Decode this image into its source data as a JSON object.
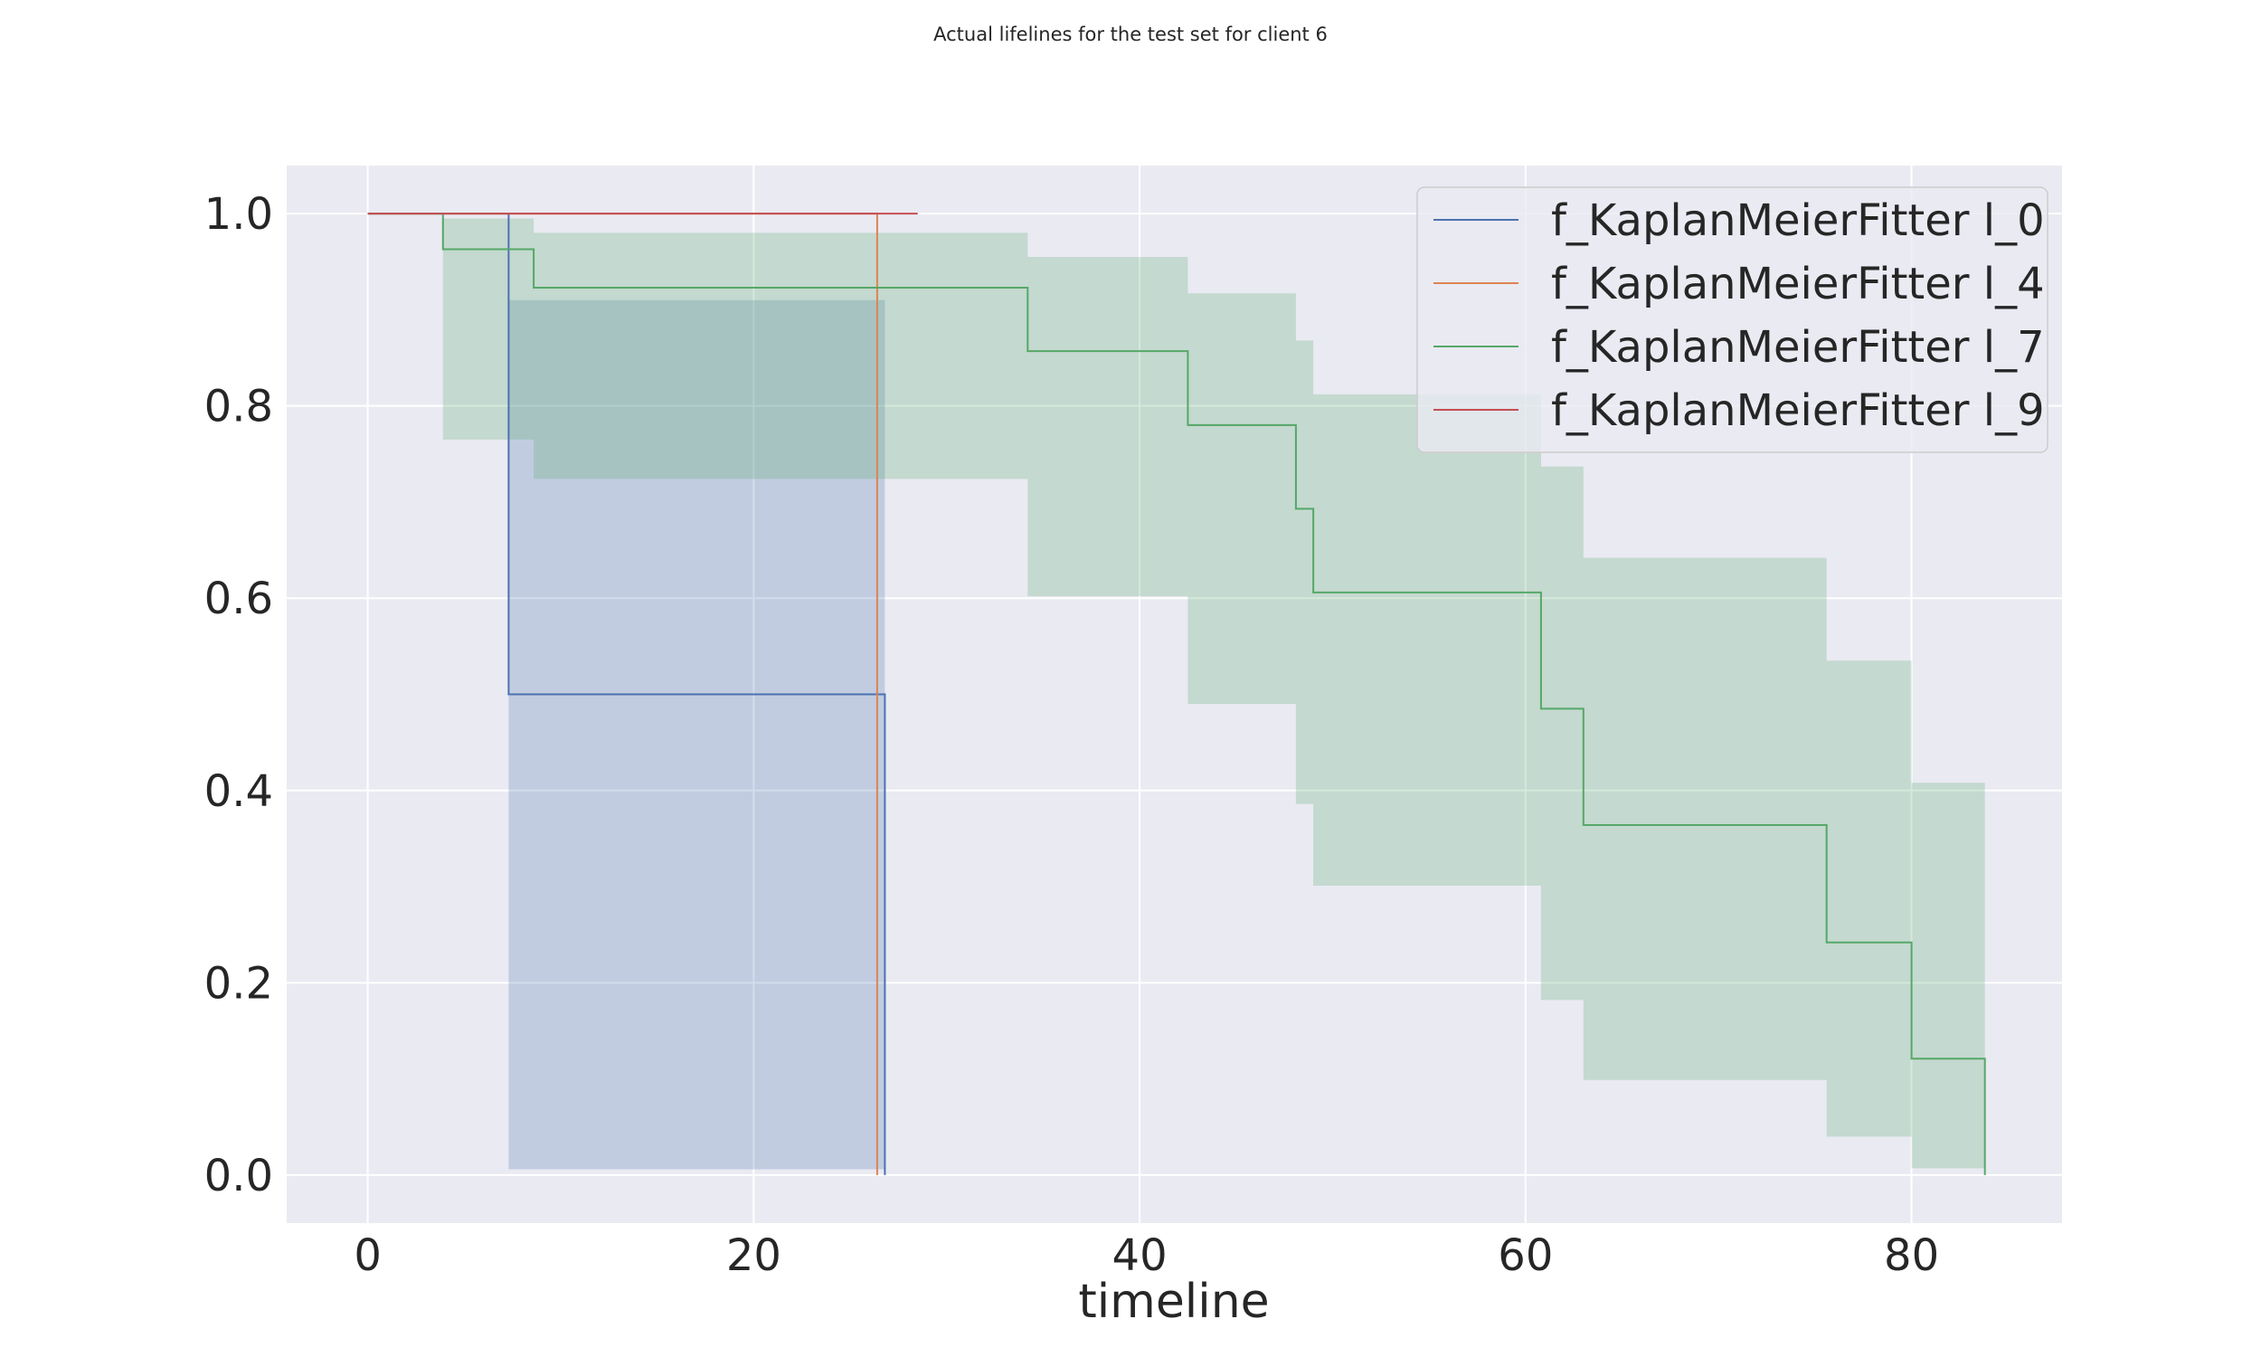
{
  "chart_data": {
    "type": "line",
    "title": "Actual lifelines for the test set for client 6",
    "xlabel": "timeline",
    "ylabel": "",
    "xlim": [
      -4.2,
      87.8
    ],
    "ylim": [
      -0.05,
      1.05
    ],
    "xticks": [
      0,
      20,
      40,
      60,
      80
    ],
    "yticks": [
      0.0,
      0.2,
      0.4,
      0.6,
      0.8,
      1.0
    ],
    "grid": true,
    "legend_position": "top-right",
    "series": [
      {
        "name": "f_KaplanMeierFitter l_0",
        "color": "#4c72b0",
        "x": [
          0,
          7.3,
          26.8
        ],
        "y": [
          1.0,
          0.5,
          0.0
        ],
        "ci_upper": [
          1.0,
          0.91,
          0.91
        ],
        "ci_lower": [
          1.0,
          0.006,
          0.006
        ]
      },
      {
        "name": "f_KaplanMeierFitter l_4",
        "color": "#dd8452",
        "x": [
          0,
          26.4
        ],
        "y": [
          1.0,
          0.0
        ]
      },
      {
        "name": "f_KaplanMeierFitter l_7",
        "color": "#55a868",
        "x": [
          0,
          3.9,
          8.6,
          34.2,
          42.5,
          48.1,
          49.0,
          60.8,
          63.0,
          75.6,
          80.0,
          83.8
        ],
        "y": [
          1.0,
          0.963,
          0.923,
          0.857,
          0.78,
          0.693,
          0.606,
          0.485,
          0.364,
          0.242,
          0.121,
          0.0
        ],
        "ci_upper": [
          1.0,
          0.995,
          0.98,
          0.955,
          0.917,
          0.868,
          0.812,
          0.737,
          0.642,
          0.535,
          0.408,
          0.408
        ],
        "ci_lower": [
          1.0,
          0.765,
          0.724,
          0.602,
          0.49,
          0.386,
          0.301,
          0.182,
          0.099,
          0.04,
          0.007,
          0.007
        ]
      },
      {
        "name": "f_KaplanMeierFitter l_9",
        "color": "#c44e52",
        "x": [
          0,
          28.5
        ],
        "y": [
          1.0,
          1.0
        ]
      }
    ]
  }
}
